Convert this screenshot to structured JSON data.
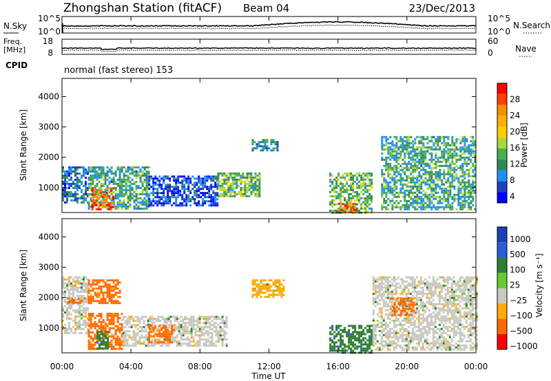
{
  "header": {
    "title": "Zhongshan Station (fitACF)",
    "beam": "Beam 04",
    "date": "23/Dec/2013"
  },
  "top_panel": {
    "left_label": "N.Sky",
    "left_ticks": [
      "10^5",
      "10^0"
    ],
    "right_label": "N.Search",
    "right_ticks": [
      "10^5",
      "10^0"
    ]
  },
  "freq_panel": {
    "left_label_1": "Freq.",
    "left_label_2": "[MHz]",
    "left_ticks": [
      "18",
      "8"
    ],
    "right_label": "Nave",
    "right_ticks": [
      "60",
      "0"
    ],
    "cpid_label": "CPID",
    "cpid_text": "normal (fast stereo) 153"
  },
  "time_axis": {
    "ticks": [
      "00:00",
      "04:00",
      "08:00",
      "12:00",
      "16:00",
      "20:00",
      "00:00"
    ],
    "label": "Time UT"
  },
  "power_colorbar": {
    "label": "Power [dB]",
    "ticks": [
      "28",
      "24",
      "20",
      "16",
      "12",
      "8",
      "4"
    ],
    "colors": [
      "#ff0000",
      "#ff4000",
      "#ff8c00",
      "#ffb000",
      "#ffcc00",
      "#a8d83a",
      "#4cae4c",
      "#2e8b57",
      "#1e90ff",
      "#2040c0",
      "#0000ff"
    ]
  },
  "velocity_colorbar": {
    "label": "Velocity [m s⁻¹]",
    "ticks": [
      "1000",
      "500",
      "100",
      "25",
      "−25",
      "−100",
      "−500",
      "−1000"
    ],
    "colors": [
      "#1a3fb0",
      "#2b5cd9",
      "#2e7d32",
      "#66cc33",
      "#c8c8c0",
      "#ffaa00",
      "#ff6a00",
      "#ff0000"
    ]
  },
  "chart_data": [
    {
      "type": "heatmap",
      "name": "power",
      "ylabel": "Slant Range [km]",
      "xlabel": "",
      "x_range_hours": [
        0,
        24
      ],
      "ylim": [
        180,
        4600
      ],
      "yticks": [
        1000,
        2000,
        3000,
        4000
      ],
      "ytick_labels": [
        "1000",
        "2000",
        "3000",
        "4000"
      ],
      "units": "dB",
      "patches": [
        {
          "x": [
            0.0,
            1.5
          ],
          "y": [
            500,
            1700
          ],
          "value": 8
        },
        {
          "x": [
            1.5,
            5.0
          ],
          "y": [
            300,
            1700
          ],
          "value": 12
        },
        {
          "x": [
            1.7,
            3.0
          ],
          "y": [
            300,
            1000
          ],
          "value": 26
        },
        {
          "x": [
            5.0,
            9.0
          ],
          "y": [
            400,
            1400
          ],
          "value": 6
        },
        {
          "x": [
            9.0,
            11.5
          ],
          "y": [
            700,
            1500
          ],
          "value": 14
        },
        {
          "x": [
            11.0,
            12.5
          ],
          "y": [
            2200,
            2600
          ],
          "value": 10
        },
        {
          "x": [
            15.5,
            18.0
          ],
          "y": [
            200,
            1500
          ],
          "value": 14
        },
        {
          "x": [
            16.0,
            17.0
          ],
          "y": [
            200,
            500
          ],
          "value": 26
        },
        {
          "x": [
            18.5,
            24.0
          ],
          "y": [
            300,
            2700
          ],
          "value": 12
        }
      ]
    },
    {
      "type": "heatmap",
      "name": "velocity",
      "ylabel": "Slant Range [km]",
      "xlabel": "Time UT",
      "x_range_hours": [
        0,
        24
      ],
      "ylim": [
        180,
        4600
      ],
      "yticks": [
        1000,
        2000,
        3000,
        4000
      ],
      "ytick_labels": [
        "1000",
        "2000",
        "3000",
        "4000"
      ],
      "units": "m s^-1",
      "patches": [
        {
          "x": [
            0.0,
            1.5
          ],
          "y": [
            800,
            2700
          ],
          "value": 0
        },
        {
          "x": [
            0.3,
            1.5
          ],
          "y": [
            1800,
            2000
          ],
          "value": -100
        },
        {
          "x": [
            1.5,
            3.3
          ],
          "y": [
            1800,
            2600
          ],
          "value": -100
        },
        {
          "x": [
            1.5,
            3.5
          ],
          "y": [
            300,
            1500
          ],
          "value": -100
        },
        {
          "x": [
            2.0,
            2.6
          ],
          "y": [
            300,
            900
          ],
          "value": 100
        },
        {
          "x": [
            3.5,
            9.5
          ],
          "y": [
            400,
            1400
          ],
          "value": 0
        },
        {
          "x": [
            5.0,
            6.5
          ],
          "y": [
            500,
            1100
          ],
          "value": -100
        },
        {
          "x": [
            11.0,
            12.8
          ],
          "y": [
            2000,
            2600
          ],
          "value": -25
        },
        {
          "x": [
            15.5,
            18.0
          ],
          "y": [
            200,
            1100
          ],
          "value": 100
        },
        {
          "x": [
            18.0,
            24.0
          ],
          "y": [
            300,
            2700
          ],
          "value": 0
        },
        {
          "x": [
            19.0,
            20.5
          ],
          "y": [
            1400,
            2000
          ],
          "value": -100
        }
      ]
    }
  ]
}
